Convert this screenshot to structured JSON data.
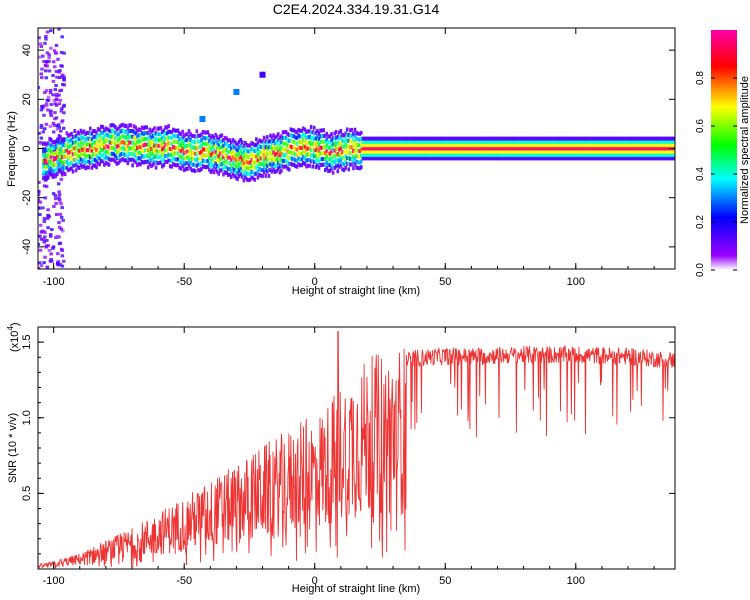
{
  "title": "C2E4.2024.334.19.31.G14",
  "chart_data": [
    {
      "type": "heatmap",
      "title": "C2E4.2024.334.19.31.G14",
      "xlabel": "Height of straight line (km)",
      "ylabel": "Frequency (Hz)",
      "xlim": [
        -106,
        138
      ],
      "ylim": [
        -49,
        49
      ],
      "xticks": [
        -100,
        -50,
        0,
        50,
        100
      ],
      "yticks": [
        -40,
        -20,
        0,
        20,
        40
      ],
      "xtick_labels": [
        "-100",
        "-50",
        "0",
        "50",
        "100"
      ],
      "ytick_labels": [
        "-40",
        "-20",
        "0",
        "20",
        "40"
      ],
      "colorbar": {
        "label": "Normalized spectral amplitude",
        "range": [
          0,
          1
        ],
        "ticks": [
          0.0,
          0.2,
          0.4,
          0.6,
          0.8
        ],
        "tick_labels": [
          "0.0",
          "0.2",
          "0.4",
          "0.6",
          "0.8"
        ],
        "colors": [
          "#ffffff",
          "#9900ff",
          "#0000ff",
          "#00ffff",
          "#00ff00",
          "#ffff00",
          "#ff0000",
          "#ff00aa"
        ]
      },
      "ridge": {
        "x": [
          -104,
          -98,
          -92,
          -86,
          -80,
          -74,
          -68,
          -62,
          -56,
          -50,
          -44,
          -38,
          -32,
          -26,
          -20,
          -14,
          -8,
          -2,
          2,
          6,
          10,
          14,
          18,
          138
        ],
        "y": [
          -5,
          -3,
          -1,
          0,
          1,
          2,
          1,
          0,
          1,
          -1,
          -1,
          -2,
          -4,
          -5,
          -4,
          -2,
          0,
          1,
          0,
          -2,
          -1,
          0,
          0,
          0
        ]
      },
      "hotspots": [
        {
          "x": -30,
          "y": 23,
          "level": 0.3
        },
        {
          "x": -43,
          "y": 12,
          "level": 0.3
        },
        {
          "x": -20,
          "y": 30,
          "level": 0.15
        }
      ],
      "grid": false
    },
    {
      "type": "line",
      "xlabel": "Height of straight line (km)",
      "ylabel": "SNR (10 * v/v)",
      "y_multiplier": "(x10",
      "y_multiplier_exp": "4",
      "y_multiplier_close": ")",
      "xlim": [
        -106,
        138
      ],
      "ylim": [
        0,
        1.6
      ],
      "xticks": [
        -100,
        -50,
        0,
        50,
        100
      ],
      "yticks": [
        0.5,
        1.0,
        1.5
      ],
      "xtick_labels": [
        "-100",
        "-50",
        "0",
        "50",
        "100"
      ],
      "ytick_labels": [
        "0.5",
        "1.0",
        "1.5"
      ],
      "series": [
        {
          "color": "#ee3333",
          "envelope_x": [
            -106,
            -100,
            -90,
            -80,
            -70,
            -60,
            -50,
            -40,
            -30,
            -20,
            -10,
            0,
            5,
            10,
            15,
            20,
            25,
            30,
            40,
            50,
            60,
            80,
            100,
            120,
            138
          ],
          "envelope_y": [
            0.03,
            0.05,
            0.1,
            0.18,
            0.26,
            0.36,
            0.46,
            0.56,
            0.66,
            0.78,
            0.88,
            0.98,
            1.05,
            1.18,
            1.28,
            1.33,
            1.37,
            1.4,
            1.44,
            1.45,
            1.45,
            1.46,
            1.46,
            1.45,
            1.42
          ],
          "peak": {
            "x": 9,
            "y": 1.57
          }
        }
      ],
      "grid": false
    }
  ]
}
